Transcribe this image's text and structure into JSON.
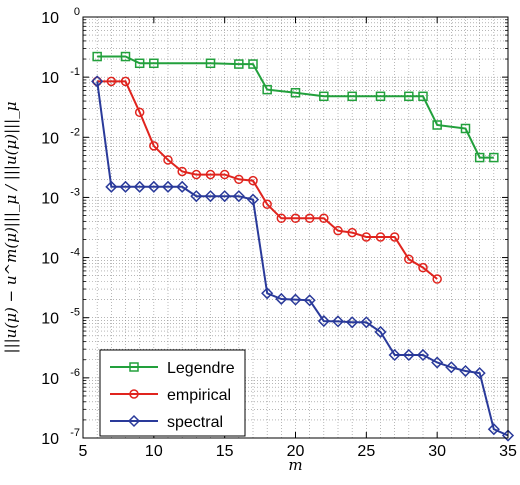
{
  "chart_data": {
    "type": "line",
    "title": "",
    "xlabel": "m",
    "ylabel": "|||u(μ) − u^m(μ)|||_μ / |||u(μ)|||_μ",
    "xlim": [
      5,
      35
    ],
    "ylim": [
      1e-07,
      1
    ],
    "yscale": "log",
    "grid": true,
    "legend_position": "bottom-left",
    "x_ticks": [
      5,
      10,
      15,
      20,
      25,
      30,
      35
    ],
    "x_tick_labels": [
      "5",
      "10",
      "15",
      "20",
      "25",
      "30",
      "35"
    ],
    "y_ticks": [
      {
        "value": 1,
        "base": "10",
        "exp": "0"
      },
      {
        "value": 0.1,
        "base": "10",
        "exp": "-1"
      },
      {
        "value": 0.01,
        "base": "10",
        "exp": "-2"
      },
      {
        "value": 0.001,
        "base": "10",
        "exp": "-3"
      },
      {
        "value": 0.0001,
        "base": "10",
        "exp": "-4"
      },
      {
        "value": 1e-05,
        "base": "10",
        "exp": "-5"
      },
      {
        "value": 1e-06,
        "base": "10",
        "exp": "-6"
      },
      {
        "value": 1e-07,
        "base": "10",
        "exp": "-7"
      }
    ],
    "series": [
      {
        "name": "Legendre",
        "color": "#22a03c",
        "marker": "square",
        "x": [
          6,
          8,
          9,
          10,
          14,
          16,
          17,
          18,
          20,
          22,
          24,
          26,
          28,
          29,
          30,
          32,
          33,
          34
        ],
        "y": [
          0.22,
          0.22,
          0.17,
          0.17,
          0.17,
          0.165,
          0.165,
          0.062,
          0.055,
          0.048,
          0.048,
          0.048,
          0.048,
          0.048,
          0.016,
          0.014,
          0.0046,
          0.0046
        ]
      },
      {
        "name": "empirical",
        "color": "#e0241e",
        "marker": "circle",
        "x": [
          6,
          7,
          8,
          9,
          10,
          11,
          12,
          13,
          14,
          15,
          16,
          17,
          18,
          19,
          20,
          21,
          22,
          23,
          24,
          25,
          26,
          27,
          28,
          29,
          30
        ],
        "y": [
          0.085,
          0.085,
          0.085,
          0.026,
          0.0072,
          0.0042,
          0.0027,
          0.0024,
          0.0024,
          0.0024,
          0.002,
          0.0019,
          0.00077,
          0.00045,
          0.00045,
          0.00045,
          0.00045,
          0.00028,
          0.00026,
          0.00022,
          0.00022,
          0.00022,
          9.4e-05,
          6.8e-05,
          4.4e-05
        ]
      },
      {
        "name": "spectral",
        "color": "#2a3a9a",
        "marker": "diamond",
        "x": [
          6,
          7,
          8,
          9,
          10,
          11,
          12,
          13,
          14,
          15,
          16,
          17,
          18,
          19,
          20,
          21,
          22,
          23,
          24,
          25,
          26,
          27,
          28,
          29,
          30,
          31,
          32,
          33,
          34,
          35
        ],
        "y": [
          0.085,
          0.0015,
          0.0015,
          0.0015,
          0.0015,
          0.0015,
          0.0015,
          0.00105,
          0.00105,
          0.00105,
          0.00105,
          0.00092,
          2.55e-05,
          2.05e-05,
          2e-05,
          1.95e-05,
          8.8e-06,
          8.7e-06,
          8.4e-06,
          8.4e-06,
          5.8e-06,
          2.4e-06,
          2.4e-06,
          2.4e-06,
          1.8e-06,
          1.5e-06,
          1.3e-06,
          1.2e-06,
          1.4e-07,
          1.1e-07
        ]
      }
    ]
  }
}
